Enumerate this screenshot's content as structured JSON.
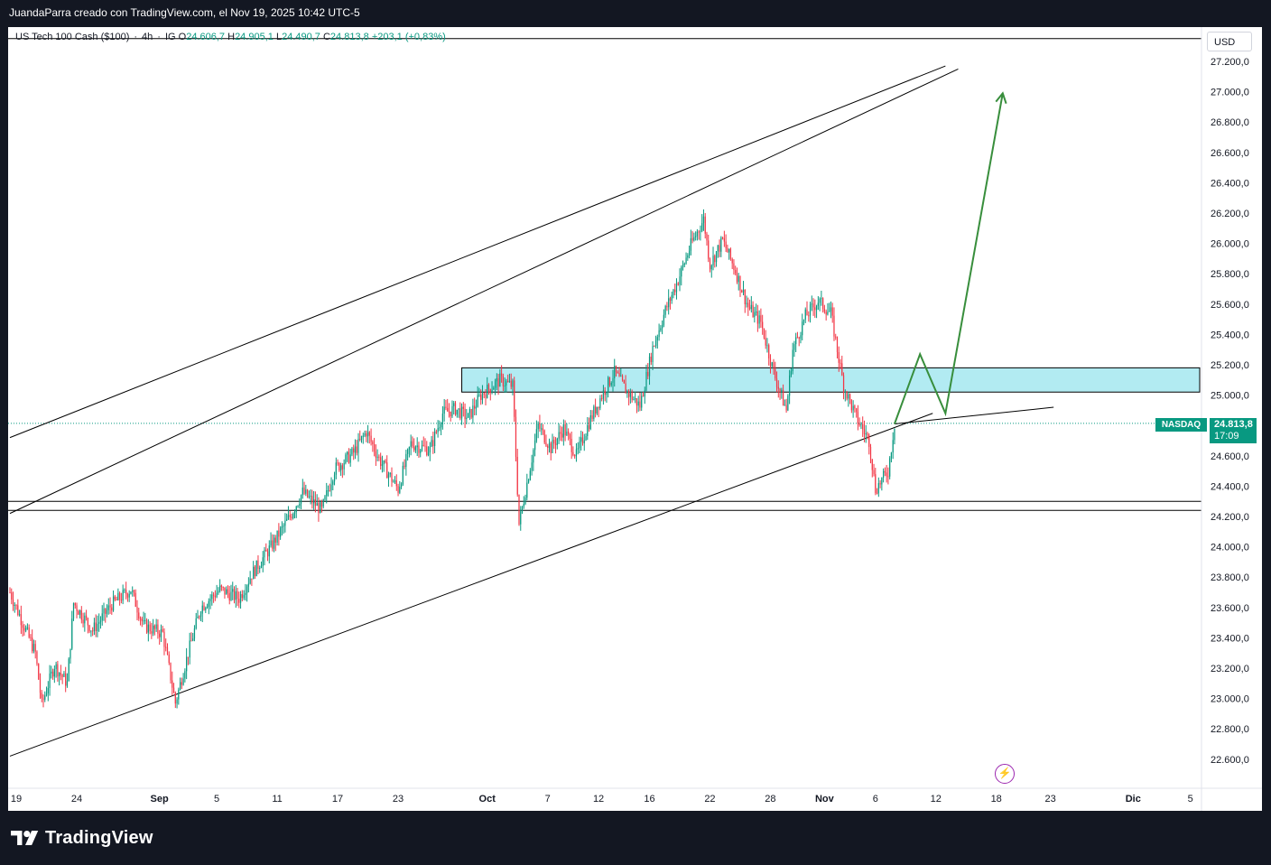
{
  "caption": "JuandaParra creado con TradingView.com, el Nov 19, 2025 10:42 UTC-5",
  "legend": {
    "symbol": "US Tech 100 Cash ($100)",
    "interval": "4h",
    "source": "IG",
    "o_label": "O",
    "o": "24.606,7",
    "h_label": "H",
    "h": "24.905,1",
    "l_label": "L",
    "l": "24.490,7",
    "c_label": "C",
    "c": "24.813,8",
    "change": "+203,1 (+0,83%)"
  },
  "currency": "USD",
  "last_price": {
    "symbol": "NASDAQ",
    "price": "24.813,8",
    "countdown": "17:09"
  },
  "branding": {
    "name": "TradingView"
  },
  "colors": {
    "up": "#089981",
    "down": "#f23645",
    "projection": "#388e3c",
    "zone": "#b2ebf2",
    "line": "#000000",
    "replay": "#9c27b0"
  },
  "chart_data": {
    "type": "candlestick",
    "title": "",
    "interval": "4h",
    "currency": "USD",
    "ylim": [
      22500,
      27300
    ],
    "y_ticks": [
      "27.200,0",
      "27.000,0",
      "26.800,0",
      "26.600,0",
      "26.400,0",
      "26.200,0",
      "26.000,0",
      "25.800,0",
      "25.600,0",
      "25.400,0",
      "25.200,0",
      "25.000,0",
      "24.800,0",
      "24.600,0",
      "24.400,0",
      "24.200,0",
      "24.000,0",
      "23.800,0",
      "23.600,0",
      "23.400,0",
      "23.200,0",
      "23.000,0",
      "22.800,0",
      "22.600,0"
    ],
    "x_ticks": [
      "19",
      "24",
      "Sep",
      "5",
      "11",
      "17",
      "23",
      "Oct",
      "7",
      "12",
      "16",
      "22",
      "28",
      "Nov",
      "6",
      "12",
      "18",
      "23",
      "Dic",
      "5"
    ],
    "last_close": 24813.8,
    "price_path": [
      [
        0,
        23700
      ],
      [
        2,
        23500
      ],
      [
        4,
        23300
      ],
      [
        5,
        22960
      ],
      [
        7,
        23220
      ],
      [
        9,
        23100
      ],
      [
        10,
        23630
      ],
      [
        13,
        23450
      ],
      [
        16,
        23620
      ],
      [
        19,
        23720
      ],
      [
        21,
        23480
      ],
      [
        24,
        23430
      ],
      [
        26,
        22970
      ],
      [
        28,
        23300
      ],
      [
        30,
        23600
      ],
      [
        33,
        23720
      ],
      [
        36,
        23660
      ],
      [
        38,
        23820
      ],
      [
        41,
        24000
      ],
      [
        44,
        24200
      ],
      [
        46,
        24360
      ],
      [
        49,
        24240
      ],
      [
        51,
        24510
      ],
      [
        54,
        24620
      ],
      [
        56,
        24760
      ],
      [
        58,
        24580
      ],
      [
        61,
        24380
      ],
      [
        63,
        24680
      ],
      [
        66,
        24640
      ],
      [
        68,
        24880
      ],
      [
        70,
        24910
      ],
      [
        72,
        24850
      ],
      [
        74,
        25000
      ],
      [
        77,
        25100
      ],
      [
        79,
        25060
      ],
      [
        80,
        24150
      ],
      [
        83,
        24800
      ],
      [
        85,
        24650
      ],
      [
        87,
        24780
      ],
      [
        89,
        24600
      ],
      [
        91,
        24820
      ],
      [
        93,
        25000
      ],
      [
        95,
        25150
      ],
      [
        97,
        25020
      ],
      [
        99,
        24930
      ],
      [
        101,
        25310
      ],
      [
        103,
        25560
      ],
      [
        105,
        25760
      ],
      [
        107,
        25990
      ],
      [
        109,
        26160
      ],
      [
        110,
        25860
      ],
      [
        112,
        26020
      ],
      [
        114,
        25820
      ],
      [
        116,
        25580
      ],
      [
        118,
        25480
      ],
      [
        120,
        25150
      ],
      [
        122,
        24900
      ],
      [
        123,
        25300
      ],
      [
        125,
        25520
      ],
      [
        127,
        25620
      ],
      [
        129,
        25540
      ],
      [
        131,
        25060
      ],
      [
        133,
        24850
      ],
      [
        135,
        24700
      ],
      [
        136,
        24380
      ],
      [
        138,
        24500
      ],
      [
        139,
        24810
      ]
    ],
    "annotations": {
      "horizontal_lines": [
        27350,
        24300,
        24240
      ],
      "zone": {
        "x_from": 71,
        "x_to": 180,
        "y_low": 25020,
        "y_high": 25180
      },
      "channel_upper": [
        [
          0,
          24720
        ],
        [
          147,
          27170
        ]
      ],
      "channel_middle": [
        [
          0,
          24220
        ],
        [
          149,
          27150
        ]
      ],
      "channel_lower": [
        [
          0,
          22620
        ],
        [
          145,
          24880
        ]
      ],
      "projection": [
        [
          139,
          24810
        ],
        [
          143,
          25270
        ],
        [
          147,
          24880
        ],
        [
          156,
          26990
        ]
      ]
    }
  }
}
